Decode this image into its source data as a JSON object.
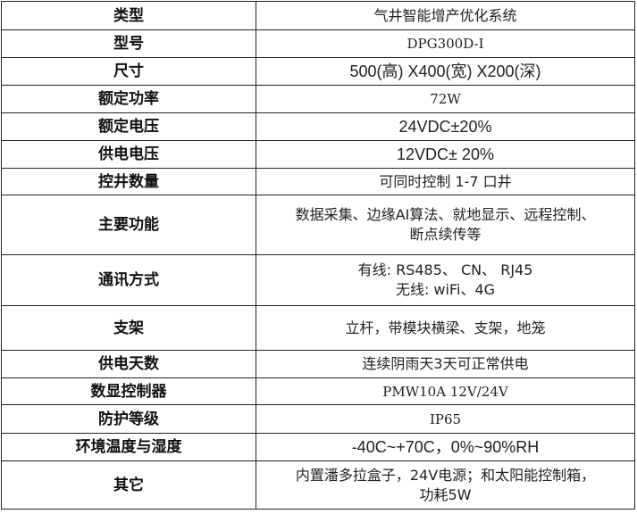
{
  "rows": [
    {
      "label": "类型",
      "value": [
        "气井智能增产优化系统"
      ]
    },
    {
      "label": "型号",
      "value": [
        "DPG300D-I"
      ]
    },
    {
      "label": "尺寸",
      "value": [
        "500(高) X400(宽) X200(深)"
      ]
    },
    {
      "label": "额定功率",
      "value": [
        "72W"
      ]
    },
    {
      "label": "额定电压",
      "value": [
        "24VDC±20%"
      ]
    },
    {
      "label": "供电电压",
      "value": [
        "12VDC± 20%"
      ]
    },
    {
      "label": "控井数量",
      "value": [
        "可同时控制 1-7 口井"
      ]
    },
    {
      "label": "主要功能",
      "value": [
        "数据采集、边缘AI算法、就地显示、远程控制、",
        "断点续传等"
      ]
    },
    {
      "label": "通讯方式",
      "value": [
        "有线: RS485、 CN、 RJ45",
        "无线: wiFi、4G"
      ]
    },
    {
      "label": "支架",
      "value": [
        "立杆，带模块横梁、支架，地笼"
      ]
    },
    {
      "label": "供电天数",
      "value": [
        "连续阴雨天3天可正常供电"
      ]
    },
    {
      "label": "数显控制器",
      "value": [
        "PMW10A 12V/24V"
      ]
    },
    {
      "label": "防护等级",
      "value": [
        "IP65"
      ]
    },
    {
      "label": "环境温度与湿度",
      "value": [
        "-40C~+70C，0%~90%RH"
      ]
    },
    {
      "label": "其它",
      "value": [
        "内置潘多拉盒子，24V电源；和太阳能控制箱，",
        "功耗5W"
      ]
    }
  ]
}
